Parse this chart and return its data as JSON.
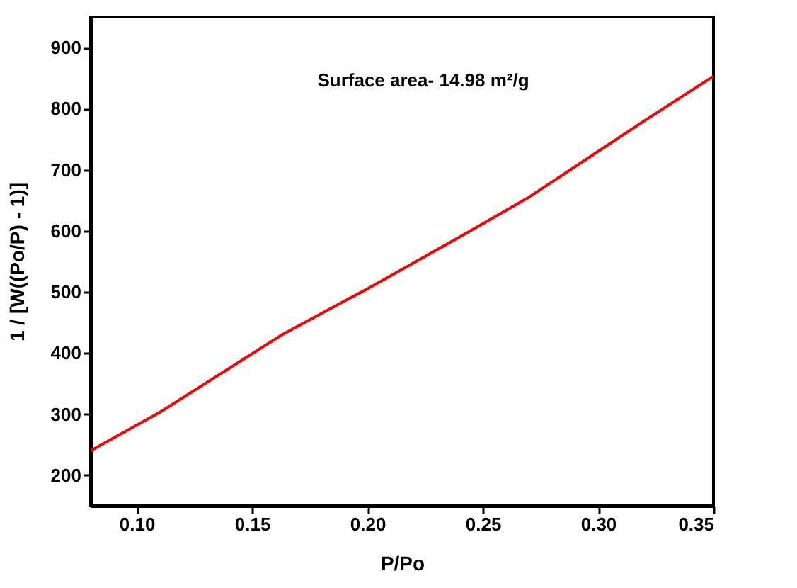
{
  "chart_data": {
    "type": "line",
    "xlabel": "P/Po",
    "ylabel": "1 / [W((Po/P) - 1)]",
    "annotations": [
      "Surface area- 14.98 m²/g"
    ],
    "x": [
      0.08,
      0.11,
      0.163,
      0.19,
      0.2,
      0.24,
      0.27,
      0.3,
      0.32,
      0.35
    ],
    "series": [
      {
        "color": "#ff0000",
        "values": [
          240,
          303,
          430,
          485,
          505,
          590,
          655,
          730,
          780,
          853
        ]
      }
    ],
    "xlim": [
      0.08,
      0.35
    ],
    "xticks": [
      {
        "value": 0.1,
        "label": "0.10"
      },
      {
        "value": 0.15,
        "label": "0.15"
      },
      {
        "value": 0.2,
        "label": "0.20"
      },
      {
        "value": 0.25,
        "label": "0.25"
      },
      {
        "value": 0.3,
        "label": "0.30"
      },
      {
        "value": 0.35,
        "label": "0.35"
      }
    ],
    "ylim": [
      150,
      950
    ],
    "yticks": [
      200,
      300,
      400,
      500,
      600,
      700,
      800,
      900
    ],
    "grid": false,
    "marker": "none",
    "line_style": "solid"
  }
}
